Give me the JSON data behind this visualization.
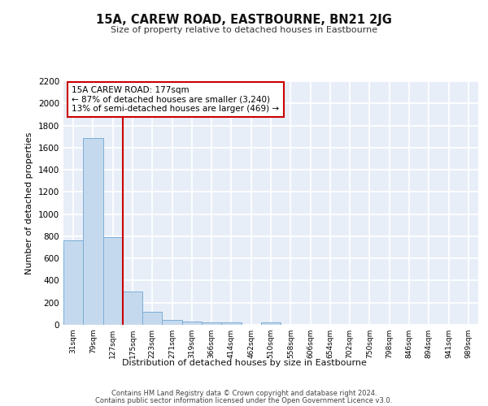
{
  "title": "15A, CAREW ROAD, EASTBOURNE, BN21 2JG",
  "subtitle": "Size of property relative to detached houses in Eastbourne",
  "xlabel": "Distribution of detached houses by size in Eastbourne",
  "ylabel": "Number of detached properties",
  "bar_labels": [
    "31sqm",
    "79sqm",
    "127sqm",
    "175sqm",
    "223sqm",
    "271sqm",
    "319sqm",
    "366sqm",
    "414sqm",
    "462sqm",
    "510sqm",
    "558sqm",
    "606sqm",
    "654sqm",
    "702sqm",
    "750sqm",
    "798sqm",
    "846sqm",
    "894sqm",
    "941sqm",
    "989sqm"
  ],
  "bar_heights": [
    760,
    1690,
    790,
    300,
    115,
    45,
    30,
    20,
    20,
    0,
    20,
    0,
    0,
    0,
    0,
    0,
    0,
    0,
    0,
    0,
    0
  ],
  "bar_color": "#c5d9ee",
  "bar_edge_color": "#7aaed6",
  "red_line_x": 3.0,
  "red_line_color": "#cc0000",
  "annotation_text": "15A CAREW ROAD: 177sqm\n← 87% of detached houses are smaller (3,240)\n13% of semi-detached houses are larger (469) →",
  "annotation_box_color": "white",
  "annotation_border_color": "#cc0000",
  "ylim": [
    0,
    2200
  ],
  "yticks": [
    0,
    200,
    400,
    600,
    800,
    1000,
    1200,
    1400,
    1600,
    1800,
    2000,
    2200
  ],
  "bg_color": "#e8eef8",
  "grid_color": "white",
  "footer_line1": "Contains HM Land Registry data © Crown copyright and database right 2024.",
  "footer_line2": "Contains public sector information licensed under the Open Government Licence v3.0."
}
